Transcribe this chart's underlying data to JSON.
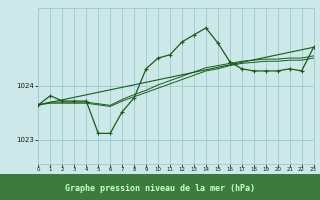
{
  "bg_color": "#cce8e8",
  "plot_bg_color": "#cce8e8",
  "grid_color": "#99cccc",
  "line_color": "#1a5c1a",
  "bottom_bar_color": "#3d7a3d",
  "bottom_text_color": "#ccffcc",
  "xlabel": "Graphe pression niveau de la mer (hPa)",
  "yticks": [
    1023,
    1024
  ],
  "xticks": [
    0,
    1,
    2,
    3,
    4,
    5,
    6,
    7,
    8,
    9,
    10,
    11,
    12,
    13,
    14,
    15,
    16,
    17,
    18,
    19,
    20,
    21,
    22,
    23
  ],
  "ylim": [
    1022.55,
    1025.45
  ],
  "xlim": [
    0,
    23
  ],
  "curve1_x": [
    0,
    1,
    2,
    3,
    4,
    5,
    6,
    7,
    8,
    9,
    10,
    11,
    12,
    13,
    14,
    15,
    16,
    17,
    18,
    19,
    20,
    21,
    22,
    23
  ],
  "curve1_y": [
    1023.65,
    1023.82,
    1023.72,
    1023.72,
    1023.72,
    1023.12,
    1023.12,
    1023.52,
    1023.78,
    1024.32,
    1024.52,
    1024.58,
    1024.82,
    1024.95,
    1025.08,
    1024.8,
    1024.45,
    1024.32,
    1024.28,
    1024.28,
    1024.28,
    1024.32,
    1024.28,
    1024.72
  ],
  "curve2_x": [
    0,
    23
  ],
  "curve2_y": [
    1023.65,
    1024.72
  ],
  "curve3_x": [
    0,
    1,
    2,
    3,
    4,
    5,
    6,
    7,
    8,
    9,
    10,
    11,
    12,
    13,
    14,
    15,
    16,
    17,
    18,
    19,
    20,
    21,
    22,
    23
  ],
  "curve3_y": [
    1023.65,
    1023.68,
    1023.68,
    1023.68,
    1023.68,
    1023.65,
    1023.62,
    1023.72,
    1023.8,
    1023.88,
    1023.96,
    1024.04,
    1024.12,
    1024.2,
    1024.28,
    1024.32,
    1024.38,
    1024.42,
    1024.44,
    1024.46,
    1024.46,
    1024.48,
    1024.48,
    1024.52
  ],
  "curve4_x": [
    0,
    1,
    2,
    3,
    4,
    5,
    6,
    7,
    8,
    9,
    10,
    11,
    12,
    13,
    14,
    15,
    16,
    17,
    18,
    19,
    20,
    21,
    22,
    23
  ],
  "curve4_y": [
    1023.65,
    1023.7,
    1023.7,
    1023.7,
    1023.7,
    1023.67,
    1023.64,
    1023.75,
    1023.84,
    1023.92,
    1024.02,
    1024.1,
    1024.18,
    1024.26,
    1024.34,
    1024.38,
    1024.42,
    1024.46,
    1024.48,
    1024.5,
    1024.5,
    1024.52,
    1024.52,
    1024.56
  ]
}
